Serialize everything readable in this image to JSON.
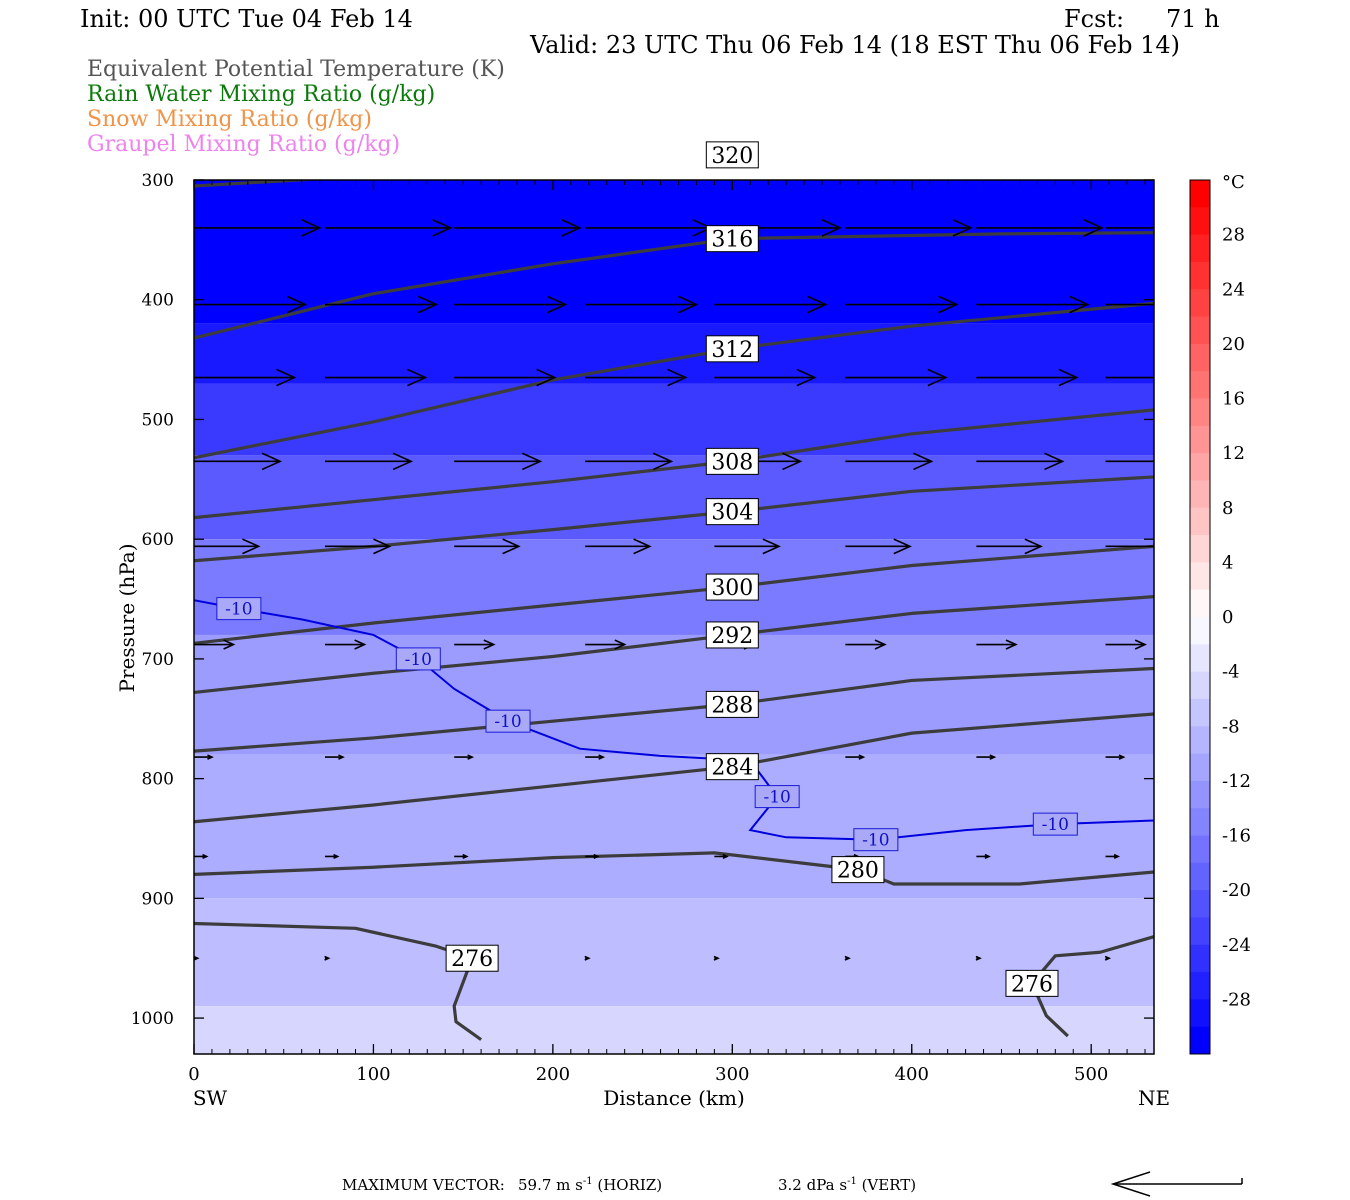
{
  "header": {
    "init": "Init: 00 UTC Tue 04 Feb 14",
    "fcst_label": "Fcst:",
    "fcst_value": "71 h",
    "valid": "Valid: 23 UTC Thu 06 Feb 14 (18 EST Thu 06 Feb 14)"
  },
  "legend": [
    {
      "label": "Equivalent Potential Temperature (K)",
      "color": "#555555"
    },
    {
      "label": "Rain Water Mixing Ratio (g/kg)",
      "color": "#0a7a0a"
    },
    {
      "label": "Snow Mixing Ratio (g/kg)",
      "color": "#f0944a"
    },
    {
      "label": "Graupel Mixing Ratio (g/kg)",
      "color": "#ee82ee"
    }
  ],
  "chart_data": {
    "type": "cross-section",
    "xlabel": "Distance (km)",
    "ylabel": "Pressure (hPa)",
    "xlim": [
      0,
      535
    ],
    "ylim": [
      1030,
      300
    ],
    "x_ticks": [
      0,
      100,
      200,
      300,
      400,
      500
    ],
    "y_ticks": [
      300,
      400,
      500,
      600,
      700,
      800,
      900,
      1000
    ],
    "x_end_labels": {
      "left": "SW",
      "right": "NE"
    },
    "colorbar": {
      "unit": "°C",
      "tick_labels": [
        "28",
        "24",
        "20",
        "16",
        "12",
        "8",
        "4",
        "0",
        "-4",
        "-8",
        "-12",
        "-16",
        "-20",
        "-24",
        "-28"
      ],
      "tick_values": [
        28,
        24,
        20,
        16,
        12,
        8,
        4,
        0,
        -4,
        -8,
        -12,
        -16,
        -20,
        -24,
        -28
      ],
      "range": [
        -32,
        32
      ],
      "step": 2,
      "cold_color": "#0000ff",
      "warm_color": "#ff0000"
    },
    "shading_bands_temperature_c": [
      {
        "x": [
          0,
          535
        ],
        "p_top": 300,
        "p_bot": 420,
        "t": -31
      },
      {
        "x": [
          0,
          535
        ],
        "p_top": 420,
        "p_bot": 470,
        "t": -28
      },
      {
        "x": [
          0,
          535
        ],
        "p_top": 470,
        "p_bot": 530,
        "t": -24
      },
      {
        "x": [
          0,
          535
        ],
        "p_top": 530,
        "p_bot": 600,
        "t": -20
      },
      {
        "x": [
          0,
          535
        ],
        "p_top": 600,
        "p_bot": 680,
        "t": -16
      },
      {
        "x": [
          0,
          535
        ],
        "p_top": 680,
        "p_bot": 780,
        "t": -12
      },
      {
        "x": [
          0,
          535
        ],
        "p_top": 780,
        "p_bot": 900,
        "t": -10
      },
      {
        "x": [
          0,
          535
        ],
        "p_top": 900,
        "p_bot": 990,
        "t": -8
      },
      {
        "x": [
          0,
          535
        ],
        "p_top": 990,
        "p_bot": 1030,
        "t": -5
      }
    ],
    "theta_e_contours": [
      {
        "label": "320",
        "points": [
          [
            0,
            305
          ],
          [
            150,
            292
          ],
          [
            300,
            279
          ],
          [
            450,
            277
          ],
          [
            535,
            272
          ]
        ]
      },
      {
        "label": "316",
        "points": [
          [
            0,
            432
          ],
          [
            100,
            395
          ],
          [
            200,
            370
          ],
          [
            300,
            349
          ],
          [
            450,
            345
          ],
          [
            535,
            344
          ]
        ]
      },
      {
        "label": "312",
        "points": [
          [
            0,
            532
          ],
          [
            100,
            502
          ],
          [
            200,
            467
          ],
          [
            300,
            441
          ],
          [
            400,
            422
          ],
          [
            535,
            403
          ]
        ]
      },
      {
        "label": "308",
        "points": [
          [
            0,
            582
          ],
          [
            100,
            567
          ],
          [
            200,
            552
          ],
          [
            300,
            535
          ],
          [
            400,
            512
          ],
          [
            535,
            492
          ]
        ]
      },
      {
        "label": "304",
        "points": [
          [
            0,
            618
          ],
          [
            100,
            606
          ],
          [
            200,
            592
          ],
          [
            300,
            577
          ],
          [
            400,
            560
          ],
          [
            535,
            548
          ]
        ]
      },
      {
        "label": "300",
        "points": [
          [
            0,
            687
          ],
          [
            100,
            670
          ],
          [
            200,
            655
          ],
          [
            300,
            640
          ],
          [
            400,
            622
          ],
          [
            535,
            606
          ]
        ]
      },
      {
        "label": "292",
        "points": [
          [
            0,
            728
          ],
          [
            100,
            712
          ],
          [
            200,
            698
          ],
          [
            300,
            680
          ],
          [
            400,
            662
          ],
          [
            535,
            648
          ]
        ]
      },
      {
        "label": "288",
        "points": [
          [
            0,
            777
          ],
          [
            100,
            766
          ],
          [
            200,
            752
          ],
          [
            300,
            738
          ],
          [
            400,
            718
          ],
          [
            535,
            708
          ]
        ]
      },
      {
        "label": "284",
        "points": [
          [
            0,
            836
          ],
          [
            100,
            822
          ],
          [
            200,
            806
          ],
          [
            300,
            790
          ],
          [
            400,
            762
          ],
          [
            535,
            746
          ]
        ]
      },
      {
        "label": "280",
        "points": [
          [
            0,
            880
          ],
          [
            100,
            874
          ],
          [
            200,
            866
          ],
          [
            290,
            862
          ],
          [
            370,
            876
          ],
          [
            390,
            888
          ],
          [
            460,
            888
          ],
          [
            535,
            878
          ]
        ]
      },
      {
        "label": "276",
        "points": [
          [
            0,
            921
          ],
          [
            90,
            925
          ],
          [
            135,
            940
          ],
          [
            155,
            950
          ],
          [
            145,
            990
          ],
          [
            146,
            1003
          ],
          [
            160,
            1018
          ]
        ]
      },
      {
        "label": "276",
        "points": [
          [
            535,
            932
          ],
          [
            505,
            945
          ],
          [
            480,
            948
          ],
          [
            467,
            971
          ],
          [
            475,
            998
          ],
          [
            487,
            1015
          ]
        ]
      }
    ],
    "temperature_contours": [
      {
        "label": "-10",
        "points": [
          [
            0,
            651
          ],
          [
            25,
            658
          ],
          [
            60,
            667
          ],
          [
            100,
            680
          ],
          [
            125,
            700
          ],
          [
            145,
            725
          ],
          [
            175,
            752
          ],
          [
            215,
            775
          ],
          [
            260,
            781
          ],
          [
            310,
            785
          ],
          [
            325,
            815
          ],
          [
            310,
            843
          ],
          [
            330,
            849
          ],
          [
            380,
            851
          ],
          [
            430,
            843
          ],
          [
            480,
            838
          ],
          [
            535,
            835
          ]
        ]
      }
    ],
    "wind_vector_rows": [
      {
        "p": 340,
        "x": [
          0,
          73,
          145,
          218,
          290,
          363,
          436,
          508
        ],
        "len_km": 70
      },
      {
        "p": 404,
        "x": [
          0,
          73,
          145,
          218,
          290,
          363,
          436,
          508
        ],
        "len_km": 62
      },
      {
        "p": 465,
        "x": [
          0,
          73,
          145,
          218,
          290,
          363,
          436,
          508
        ],
        "len_km": 56
      },
      {
        "p": 535,
        "x": [
          0,
          73,
          145,
          218,
          290,
          363,
          436,
          508
        ],
        "len_km": 48
      },
      {
        "p": 606,
        "x": [
          0,
          73,
          145,
          218,
          290,
          363,
          436,
          508
        ],
        "len_km": 36
      },
      {
        "p": 688,
        "x": [
          0,
          73,
          145,
          218,
          290,
          363,
          436,
          508
        ],
        "len_km": 22
      },
      {
        "p": 782,
        "x": [
          0,
          73,
          145,
          218,
          290,
          363,
          436,
          508
        ],
        "len_km": 10
      },
      {
        "p": 865,
        "x": [
          0,
          73,
          145,
          218,
          290,
          363,
          436,
          508
        ],
        "len_km": 7
      },
      {
        "p": 950,
        "x": [
          0,
          73,
          145,
          218,
          290,
          363,
          436,
          508
        ],
        "len_km": 2
      }
    ]
  },
  "footer": {
    "max_vector": "MAXIMUM VECTOR:",
    "horiz_value": "59.7 m s",
    "horiz_sup": "-1",
    "horiz_suffix": " (HORIZ)",
    "vert_value": "3.2 dPa s",
    "vert_sup": "-1",
    "vert_suffix": " (VERT)"
  }
}
